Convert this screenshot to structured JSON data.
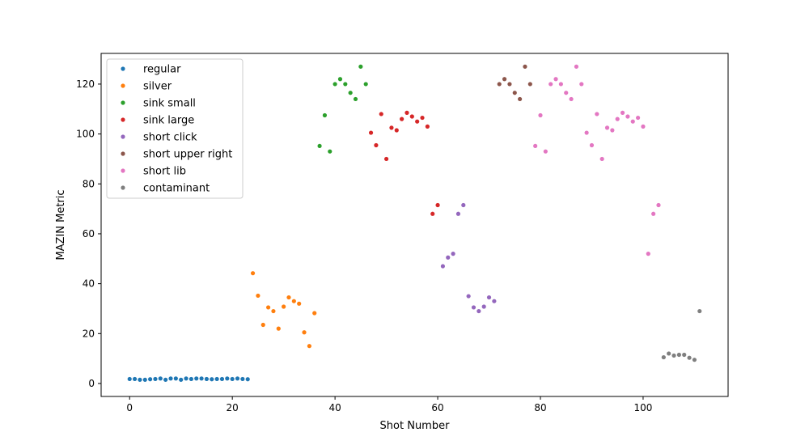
{
  "chart_data": {
    "type": "scatter",
    "title": "",
    "xlabel": "Shot Number",
    "ylabel": "MAZIN Metric",
    "xlim": [
      -5.55,
      116.55
    ],
    "ylim": [
      -5.2,
      132.3
    ],
    "xticks": [
      0,
      20,
      40,
      60,
      80,
      100
    ],
    "yticks": [
      0,
      20,
      40,
      60,
      80,
      100,
      120
    ],
    "grid": false,
    "legend_position": "top-left",
    "series": [
      {
        "name": "regular",
        "color": "#1f77b4",
        "x": [
          0,
          1,
          2,
          3,
          4,
          5,
          6,
          7,
          8,
          9,
          10,
          11,
          12,
          13,
          14,
          15,
          16,
          17,
          18,
          19,
          20,
          21,
          22,
          23
        ],
        "y": [
          1.8,
          1.8,
          1.5,
          1.5,
          1.7,
          1.8,
          2.0,
          1.5,
          2.0,
          2.0,
          1.5,
          2.0,
          1.8,
          2.0,
          2.0,
          1.8,
          1.7,
          1.8,
          1.8,
          2.0,
          1.8,
          2.0,
          1.8,
          1.7
        ]
      },
      {
        "name": "silver",
        "color": "#ff7f0e",
        "x": [
          24,
          25,
          26,
          27,
          28,
          29,
          30,
          31,
          32,
          33,
          34,
          35,
          36
        ],
        "y": [
          44.2,
          35.2,
          23.5,
          30.5,
          29.0,
          22.0,
          30.8,
          34.5,
          33.0,
          32.0,
          20.5,
          15.0,
          28.2
        ]
      },
      {
        "name": "sink small",
        "color": "#2ca02c",
        "x": [
          37,
          38,
          39,
          40,
          41,
          42,
          43,
          44,
          45,
          46
        ],
        "y": [
          95.2,
          107.5,
          93.0,
          120.0,
          122.0,
          120.0,
          116.5,
          114.0,
          127.0,
          120.0
        ]
      },
      {
        "name": "sink large",
        "color": "#d62728",
        "x": [
          47,
          48,
          49,
          50,
          51,
          52,
          53,
          54,
          55,
          56,
          57,
          58,
          59,
          60
        ],
        "y": [
          100.5,
          95.5,
          108.0,
          90.0,
          102.5,
          101.5,
          106.0,
          108.5,
          107.0,
          105.0,
          106.5,
          103.0,
          68.0,
          71.5
        ]
      },
      {
        "name": "short click",
        "color": "#9467bd",
        "x": [
          61,
          62,
          63,
          64,
          65,
          66,
          67,
          68,
          69,
          70,
          71
        ],
        "y": [
          47.0,
          50.5,
          52.0,
          68.0,
          71.5,
          35.0,
          30.5,
          29.0,
          30.8,
          34.5,
          33.0
        ]
      },
      {
        "name": "short upper right",
        "color": "#8c564b",
        "x": [
          72,
          73,
          74,
          75,
          76,
          77,
          78
        ],
        "y": [
          120.0,
          122.0,
          120.0,
          116.5,
          114.0,
          127.0,
          120.0
        ]
      },
      {
        "name": "short lib",
        "color": "#e377c2",
        "x": [
          79,
          80,
          81,
          82,
          83,
          84,
          85,
          86,
          87,
          88,
          89,
          90,
          91,
          92,
          93,
          94,
          95,
          96,
          97,
          98,
          99,
          100,
          101,
          102,
          103
        ],
        "y": [
          95.2,
          107.5,
          93.0,
          120.0,
          122.0,
          120.0,
          116.5,
          114.0,
          127.0,
          120.0,
          100.5,
          95.5,
          108.0,
          90.0,
          102.5,
          101.5,
          106.0,
          108.5,
          107.0,
          105.0,
          106.5,
          103.0,
          52.0,
          68.0,
          71.5
        ]
      },
      {
        "name": "contaminant",
        "color": "#7f7f7f",
        "x": [
          104,
          105,
          106,
          107,
          108,
          109,
          110,
          111
        ],
        "y": [
          10.5,
          12.0,
          11.2,
          11.5,
          11.5,
          10.3,
          9.5,
          29.0
        ]
      }
    ]
  }
}
